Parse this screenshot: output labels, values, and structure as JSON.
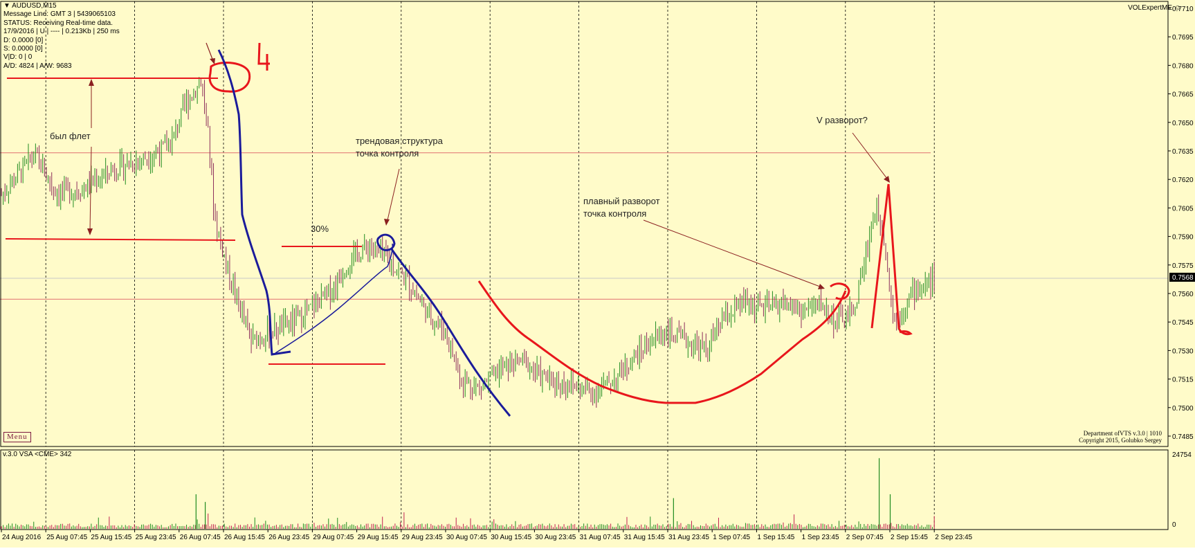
{
  "window": {
    "symbol_title": "AUDUSD,M15",
    "expert_name": "VOLExpertME"
  },
  "info_panel": {
    "lines": [
      "Message Line: GMT 3 | 5439065103",
      "STATUS:  Receiving Real-time data.",
      "17/9/2016 | U | ---- | 0.213Kb | 250 ms",
      "D: 0.0000  [0]",
      "S: 0.0000  [0]",
      "V|D: 0 | 0",
      "A/D: 4824 | A/W: 9683"
    ]
  },
  "menu_button": {
    "label": "Menu"
  },
  "credits": {
    "line1": "Department ofVTS  v.3.0 | 1010",
    "line2": "Copyright 2015, Golubko Sergey"
  },
  "indicator": {
    "title": "v.3.0 VSA <CME> 342",
    "axis_labels": [
      "24754",
      "0"
    ]
  },
  "annotations": {
    "flat": "был флет",
    "trend_line1": "трендовая структура",
    "trend_line2": "точка контроля",
    "pct": "30%",
    "smooth_line1": "плавный разворот",
    "smooth_line2": "точка контроля",
    "v_reversal": "V разворот?",
    "marker_4": "4"
  },
  "colors": {
    "background": "#fffbc9",
    "bull_candle": "#1e8a1e",
    "bear_candle": "#8b2b5a",
    "drawing_red": "#e8161c",
    "drawing_blue": "#1b1b9a",
    "volume_green": "#1e8a1e",
    "volume_red": "#c02050"
  },
  "chart_data": {
    "type": "candlestick",
    "title": "AUDUSD,M15",
    "current_price": "0.7568",
    "y_range": [
      0.7485,
      0.771
    ],
    "y_ticks": [
      "0.7710",
      "0.7695",
      "0.7680",
      "0.7665",
      "0.7650",
      "0.7635",
      "0.7620",
      "0.7605",
      "0.7590",
      "0.7575",
      "0.7560",
      "0.7545",
      "0.7530",
      "0.7515",
      "0.7500",
      "0.7485"
    ],
    "x_ticks": [
      "24 Aug 2016",
      "25 Aug 07:45",
      "25 Aug 15:45",
      "25 Aug 23:45",
      "26 Aug 07:45",
      "26 Aug 15:45",
      "26 Aug 23:45",
      "29 Aug 07:45",
      "29 Aug 15:45",
      "29 Aug 23:45",
      "30 Aug 07:45",
      "30 Aug 15:45",
      "30 Aug 23:45",
      "31 Aug 07:45",
      "31 Aug 15:45",
      "31 Aug 23:45",
      "1 Sep 07:45",
      "1 Sep 15:45",
      "1 Sep 23:45",
      "2 Sep 07:45",
      "2 Sep 15:45",
      "2 Sep 23:45"
    ],
    "horizontal_levels": [
      0.7634,
      0.7557
    ],
    "price_path": [
      {
        "x": 0,
        "y": 0.7612
      },
      {
        "x": 0.04,
        "y": 0.7621
      },
      {
        "x": 0.09,
        "y": 0.7633
      },
      {
        "x": 0.15,
        "y": 0.7613
      },
      {
        "x": 0.22,
        "y": 0.7615
      },
      {
        "x": 0.3,
        "y": 0.7625
      },
      {
        "x": 0.4,
        "y": 0.7632
      },
      {
        "x": 0.46,
        "y": 0.7638
      },
      {
        "x": 0.5,
        "y": 0.7659
      },
      {
        "x": 0.545,
        "y": 0.7672
      },
      {
        "x": 0.565,
        "y": 0.764
      },
      {
        "x": 0.58,
        "y": 0.76
      },
      {
        "x": 0.62,
        "y": 0.757
      },
      {
        "x": 0.68,
        "y": 0.7535
      },
      {
        "x": 0.74,
        "y": 0.754
      },
      {
        "x": 0.82,
        "y": 0.7548
      },
      {
        "x": 0.9,
        "y": 0.7562
      },
      {
        "x": 0.95,
        "y": 0.7578
      },
      {
        "x": 1.0,
        "y": 0.7585
      },
      {
        "x": 1.05,
        "y": 0.7578
      },
      {
        "x": 1.1,
        "y": 0.7568
      },
      {
        "x": 1.16,
        "y": 0.755
      },
      {
        "x": 1.21,
        "y": 0.754
      },
      {
        "x": 1.25,
        "y": 0.7515
      },
      {
        "x": 1.3,
        "y": 0.751
      },
      {
        "x": 1.36,
        "y": 0.752
      },
      {
        "x": 1.42,
        "y": 0.7525
      },
      {
        "x": 1.48,
        "y": 0.7515
      },
      {
        "x": 1.55,
        "y": 0.7512
      },
      {
        "x": 1.61,
        "y": 0.7508
      },
      {
        "x": 1.67,
        "y": 0.7515
      },
      {
        "x": 1.74,
        "y": 0.753
      },
      {
        "x": 1.8,
        "y": 0.754
      },
      {
        "x": 1.86,
        "y": 0.7535
      },
      {
        "x": 1.92,
        "y": 0.753
      },
      {
        "x": 1.96,
        "y": 0.7545
      },
      {
        "x": 2.02,
        "y": 0.7555
      },
      {
        "x": 2.08,
        "y": 0.7552
      },
      {
        "x": 2.13,
        "y": 0.7555
      },
      {
        "x": 2.18,
        "y": 0.755
      },
      {
        "x": 2.23,
        "y": 0.7555
      },
      {
        "x": 2.27,
        "y": 0.7545
      },
      {
        "x": 2.32,
        "y": 0.755
      },
      {
        "x": 2.38,
        "y": 0.7605
      },
      {
        "x": 2.4,
        "y": 0.7595
      },
      {
        "x": 2.43,
        "y": 0.7545
      },
      {
        "x": 2.48,
        "y": 0.756
      },
      {
        "x": 2.54,
        "y": 0.7568
      }
    ]
  }
}
